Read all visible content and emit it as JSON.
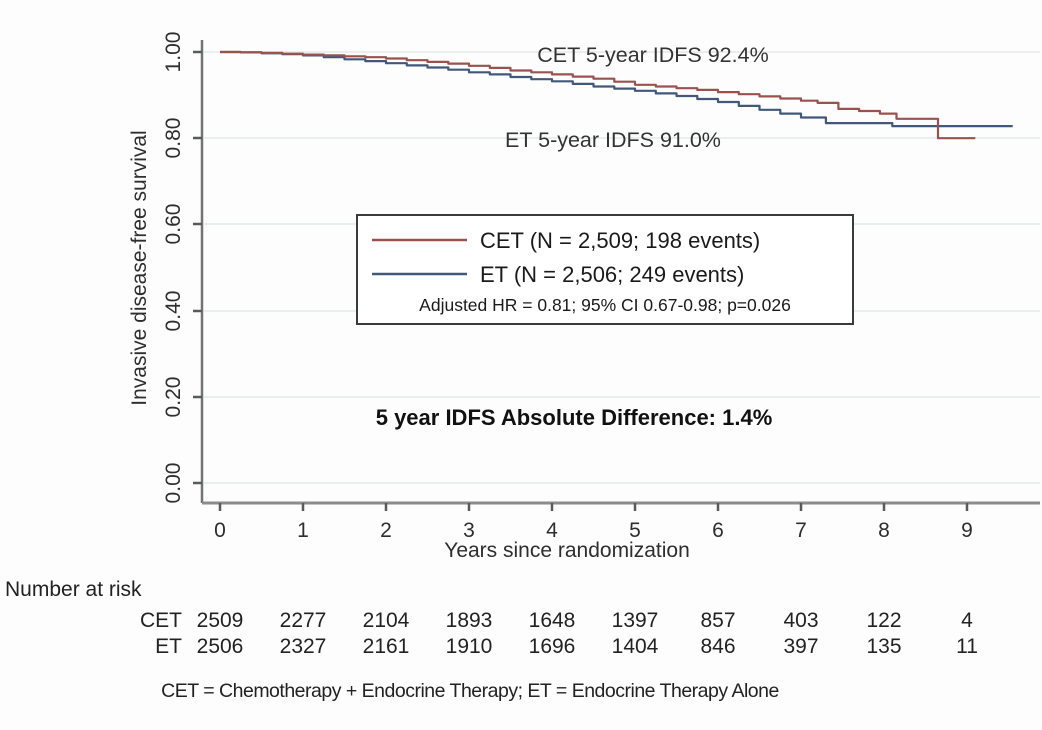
{
  "chart_data": {
    "type": "line",
    "subtype": "kaplan_meier_step",
    "title": "",
    "xlabel": "Years since randomization",
    "ylabel": "Invasive disease-free survival",
    "xlim": [
      0,
      9.85
    ],
    "ylim": [
      0.0,
      1.0
    ],
    "grid": "horizontal",
    "x_ticks": [
      "0",
      "1",
      "2",
      "3",
      "4",
      "5",
      "6",
      "7",
      "8",
      "9"
    ],
    "y_ticks": [
      "1.00",
      "0.80",
      "0.60",
      "0.40",
      "0.20",
      "0.00"
    ],
    "annotations": {
      "cet_curve_label": "CET 5-year IDFS 92.4%",
      "et_curve_label": "ET 5-year IDFS 91.0%",
      "difference_label": "5 year IDFS Absolute Difference: 1.4%"
    },
    "legend": {
      "position": "center",
      "entries": [
        {
          "label": "CET (N = 2,509; 198 events)",
          "color": "#9a524e"
        },
        {
          "label": "ET (N = 2,506; 249 events)",
          "color": "#42587a"
        }
      ],
      "stats_line": "Adjusted HR = 0.81; 95% CI 0.67-0.98; p=0.026"
    },
    "series": [
      {
        "name": "ET",
        "color": "#42587a",
        "points": [
          [
            0.0,
            1.0
          ],
          [
            0.25,
            0.999
          ],
          [
            0.5,
            0.997
          ],
          [
            0.75,
            0.995
          ],
          [
            1.0,
            0.992
          ],
          [
            1.25,
            0.988
          ],
          [
            1.5,
            0.983
          ],
          [
            1.75,
            0.979
          ],
          [
            2.0,
            0.974
          ],
          [
            2.25,
            0.969
          ],
          [
            2.5,
            0.964
          ],
          [
            2.75,
            0.959
          ],
          [
            3.0,
            0.953
          ],
          [
            3.25,
            0.948
          ],
          [
            3.5,
            0.942
          ],
          [
            3.75,
            0.937
          ],
          [
            4.0,
            0.932
          ],
          [
            4.25,
            0.926
          ],
          [
            4.5,
            0.92
          ],
          [
            4.75,
            0.915
          ],
          [
            5.0,
            0.91
          ],
          [
            5.25,
            0.904
          ],
          [
            5.5,
            0.898
          ],
          [
            5.75,
            0.891
          ],
          [
            6.0,
            0.884
          ],
          [
            6.25,
            0.875
          ],
          [
            6.5,
            0.866
          ],
          [
            6.75,
            0.857
          ],
          [
            7.0,
            0.848
          ],
          [
            7.3,
            0.835
          ],
          [
            8.1,
            0.828
          ],
          [
            9.55,
            0.828
          ]
        ]
      },
      {
        "name": "CET",
        "color": "#9a524e",
        "points": [
          [
            0.0,
            1.0
          ],
          [
            0.25,
            0.999
          ],
          [
            0.5,
            0.998
          ],
          [
            0.75,
            0.996
          ],
          [
            1.0,
            0.994
          ],
          [
            1.25,
            0.992
          ],
          [
            1.5,
            0.99
          ],
          [
            1.75,
            0.988
          ],
          [
            2.0,
            0.985
          ],
          [
            2.25,
            0.981
          ],
          [
            2.5,
            0.977
          ],
          [
            2.75,
            0.973
          ],
          [
            3.0,
            0.968
          ],
          [
            3.25,
            0.963
          ],
          [
            3.5,
            0.957
          ],
          [
            3.75,
            0.953
          ],
          [
            4.0,
            0.948
          ],
          [
            4.25,
            0.943
          ],
          [
            4.5,
            0.938
          ],
          [
            4.75,
            0.931
          ],
          [
            5.0,
            0.924
          ],
          [
            5.25,
            0.92
          ],
          [
            5.5,
            0.916
          ],
          [
            5.75,
            0.912
          ],
          [
            6.0,
            0.907
          ],
          [
            6.25,
            0.902
          ],
          [
            6.5,
            0.897
          ],
          [
            6.75,
            0.892
          ],
          [
            7.0,
            0.887
          ],
          [
            7.2,
            0.882
          ],
          [
            7.45,
            0.868
          ],
          [
            7.7,
            0.863
          ],
          [
            7.95,
            0.857
          ],
          [
            8.15,
            0.845
          ],
          [
            8.65,
            0.8
          ],
          [
            9.1,
            0.8
          ]
        ]
      }
    ],
    "risk_table": {
      "title": "Number at risk",
      "rows": [
        {
          "label": "CET",
          "values": [
            "2509",
            "2277",
            "2104",
            "1893",
            "1648",
            "1397",
            "857",
            "403",
            "122",
            "4"
          ]
        },
        {
          "label": "ET",
          "values": [
            "2506",
            "2327",
            "2161",
            "1910",
            "1696",
            "1404",
            "846",
            "397",
            "135",
            "11"
          ]
        }
      ]
    },
    "footnote": "CET = Chemotherapy + Endocrine Therapy; ET = Endocrine Therapy Alone"
  }
}
